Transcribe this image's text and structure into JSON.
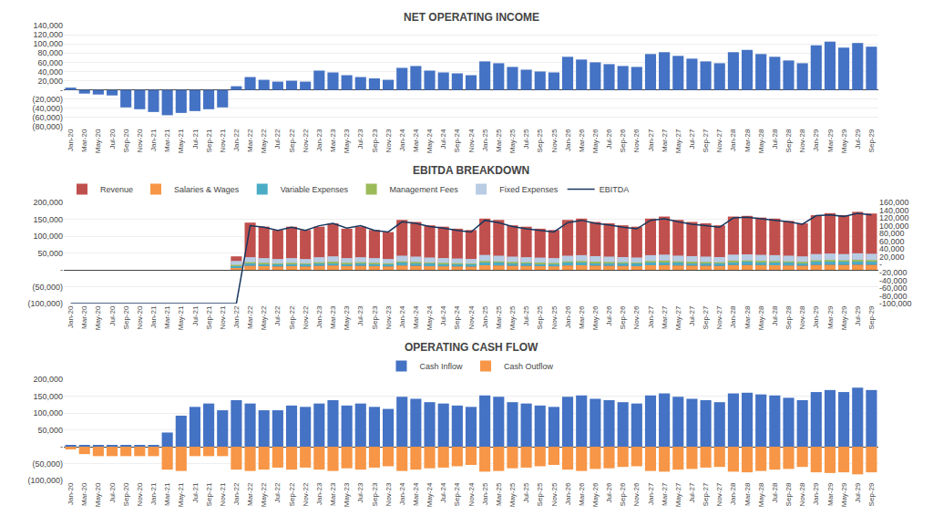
{
  "chart_data": [
    {
      "type": "bar",
      "title": "NET OPERATING INCOME",
      "categories": [
        "Jan-20",
        "Mar-20",
        "May-20",
        "Jul-20",
        "Sep-20",
        "Nov-20",
        "Jan-21",
        "Mar-21",
        "May-21",
        "Jul-21",
        "Sep-21",
        "Nov-21",
        "Jan-22",
        "Mar-22",
        "May-22",
        "Jul-22",
        "Sep-22",
        "Nov-22",
        "Jan-23",
        "Mar-23",
        "May-23",
        "Jul-23",
        "Sep-23",
        "Nov-23",
        "Jan-24",
        "Mar-24",
        "May-24",
        "Jul-24",
        "Sep-24",
        "Nov-24",
        "Jan-25",
        "Mar-25",
        "May-25",
        "Jul-25",
        "Sep-25",
        "Nov-25",
        "Jan-26",
        "Mar-26",
        "May-26",
        "Jul-26",
        "Sep-26",
        "Nov-26",
        "Jan-27",
        "Mar-27",
        "May-27",
        "Jul-27",
        "Sep-27",
        "Nov-27",
        "Jan-28",
        "Mar-28",
        "May-28",
        "Jul-28",
        "Sep-28",
        "Nov-28",
        "Jan-29",
        "Mar-29",
        "May-29",
        "Jul-29",
        "Sep-29"
      ],
      "values": [
        5000,
        -8000,
        -10000,
        -12000,
        -38000,
        -42000,
        -48000,
        -55000,
        -50000,
        -46000,
        -42000,
        -38000,
        8000,
        28000,
        22000,
        18000,
        20000,
        18000,
        42000,
        38000,
        32000,
        28000,
        25000,
        22000,
        48000,
        52000,
        42000,
        38000,
        36000,
        32000,
        62000,
        58000,
        50000,
        44000,
        40000,
        38000,
        72000,
        66000,
        60000,
        56000,
        52000,
        50000,
        78000,
        82000,
        74000,
        68000,
        62000,
        58000,
        82000,
        87000,
        78000,
        72000,
        64000,
        58000,
        97000,
        105000,
        92000,
        102000,
        94000
      ],
      "color": "#4472C4",
      "ylim": [
        -80000,
        140000
      ],
      "yticks": [
        {
          "value": -80000,
          "label": "(80,000)"
        },
        {
          "value": -60000,
          "label": "(60,000)"
        },
        {
          "value": -40000,
          "label": "(40,000)"
        },
        {
          "value": -20000,
          "label": "(20,000)"
        },
        {
          "value": 0,
          "label": "-"
        },
        {
          "value": 20000,
          "label": "20,000"
        },
        {
          "value": 40000,
          "label": "40,000"
        },
        {
          "value": 60000,
          "label": "60,000"
        },
        {
          "value": 80000,
          "label": "80,000"
        },
        {
          "value": 100000,
          "label": "100,000"
        },
        {
          "value": 120000,
          "label": "120,000"
        },
        {
          "value": 140000,
          "label": "140,000"
        }
      ],
      "grid": true
    },
    {
      "type": "bar",
      "title": "EBITDA BREAKDOWN",
      "categories": [
        "Jan-20",
        "Mar-20",
        "May-20",
        "Jul-20",
        "Sep-20",
        "Nov-20",
        "Jan-21",
        "Mar-21",
        "May-21",
        "Jul-21",
        "Sep-21",
        "Nov-21",
        "Jan-22",
        "Mar-22",
        "May-22",
        "Jul-22",
        "Sep-22",
        "Nov-22",
        "Jan-23",
        "Mar-23",
        "May-23",
        "Jul-23",
        "Sep-23",
        "Nov-23",
        "Jan-24",
        "Mar-24",
        "May-24",
        "Jul-24",
        "Sep-24",
        "Nov-24",
        "Jan-25",
        "Mar-25",
        "May-25",
        "Jul-25",
        "Sep-25",
        "Nov-25",
        "Jan-26",
        "Mar-26",
        "May-26",
        "Jul-26",
        "Sep-26",
        "Nov-26",
        "Jan-27",
        "Mar-27",
        "May-27",
        "Jul-27",
        "Sep-27",
        "Nov-27",
        "Jan-28",
        "Mar-28",
        "May-28",
        "Jul-28",
        "Sep-28",
        "Nov-28",
        "Jan-29",
        "Mar-29",
        "May-29",
        "Jul-29",
        "Sep-29"
      ],
      "series": [
        {
          "name": "Revenue",
          "color": "#C0504D",
          "values": [
            0,
            0,
            0,
            0,
            0,
            0,
            0,
            0,
            0,
            0,
            0,
            0,
            40000,
            140000,
            128000,
            118000,
            128000,
            118000,
            128000,
            138000,
            122000,
            128000,
            118000,
            112000,
            148000,
            142000,
            132000,
            128000,
            122000,
            118000,
            152000,
            148000,
            132000,
            128000,
            122000,
            118000,
            148000,
            152000,
            142000,
            138000,
            132000,
            128000,
            152000,
            158000,
            148000,
            142000,
            138000,
            132000,
            158000,
            160000,
            155000,
            152000,
            145000,
            138000,
            162000,
            168000,
            162000,
            172000,
            167000
          ]
        },
        {
          "name": "Salaries & Wages",
          "color": "#F79646",
          "stacked": true,
          "values": [
            0,
            0,
            0,
            0,
            0,
            0,
            0,
            0,
            0,
            0,
            0,
            0,
            8000,
            12000,
            11000,
            10000,
            11000,
            10000,
            12000,
            13000,
            11000,
            12000,
            11000,
            10000,
            13000,
            12000,
            11000,
            10500,
            10000,
            9500,
            13500,
            13000,
            12000,
            11500,
            11000,
            10500,
            13000,
            13500,
            12500,
            12000,
            11500,
            11000,
            13500,
            14000,
            13000,
            12500,
            12000,
            11500,
            14000,
            14200,
            13800,
            13500,
            13000,
            12200,
            14500,
            15000,
            14500,
            15200,
            14800
          ]
        },
        {
          "name": "Variable Expenses",
          "color": "#4BACC6",
          "stacked": true,
          "values": [
            0,
            0,
            0,
            0,
            0,
            0,
            0,
            0,
            0,
            0,
            0,
            0,
            5000,
            8000,
            7500,
            7000,
            7500,
            7000,
            8000,
            8500,
            7500,
            8000,
            7500,
            7000,
            9000,
            8500,
            8000,
            7500,
            7200,
            7000,
            9500,
            9000,
            8500,
            8000,
            7800,
            7500,
            9000,
            9500,
            8800,
            8500,
            8200,
            8000,
            9500,
            10000,
            9200,
            8800,
            8500,
            8200,
            10000,
            10200,
            9800,
            9500,
            9200,
            8800,
            10500,
            11000,
            10500,
            11200,
            10800
          ]
        },
        {
          "name": "Management Fees",
          "color": "#9BBB59",
          "stacked": true,
          "values": [
            0,
            0,
            0,
            0,
            0,
            0,
            0,
            0,
            0,
            0,
            0,
            0,
            1500,
            2500,
            2300,
            2100,
            2300,
            2100,
            2500,
            2700,
            2400,
            2500,
            2300,
            2200,
            3000,
            2800,
            2600,
            2500,
            2400,
            2300,
            3200,
            3000,
            2800,
            2600,
            2500,
            2400,
            3000,
            3100,
            2900,
            2800,
            2700,
            2600,
            3100,
            3200,
            3000,
            2900,
            2800,
            2700,
            3200,
            3300,
            3100,
            3000,
            2900,
            2800,
            3300,
            3400,
            3300,
            3500,
            3400
          ]
        },
        {
          "name": "Fixed Expenses",
          "color": "#B8CCE4",
          "stacked": true,
          "values": [
            0,
            0,
            0,
            0,
            0,
            0,
            0,
            0,
            0,
            0,
            0,
            0,
            12000,
            15000,
            14000,
            13000,
            14000,
            13000,
            15000,
            16000,
            14000,
            15000,
            14000,
            13000,
            17000,
            16000,
            15000,
            14500,
            14000,
            13500,
            18000,
            17000,
            16000,
            15500,
            15000,
            14500,
            17000,
            17500,
            16500,
            16000,
            15500,
            15000,
            17500,
            18000,
            17000,
            16500,
            16000,
            15500,
            18000,
            18200,
            17800,
            17500,
            17000,
            16200,
            18500,
            19000,
            18500,
            19200,
            18800
          ]
        },
        {
          "name": "EBITDA",
          "type": "line",
          "axis": "y2",
          "color": "#17375E",
          "values": [
            -100000,
            -100000,
            -100000,
            -100000,
            -100000,
            -100000,
            -100000,
            -100000,
            -100000,
            -100000,
            -100000,
            -100000,
            -100000,
            100000,
            96000,
            88000,
            96000,
            88000,
            100000,
            106000,
            94000,
            100000,
            88000,
            84000,
            110000,
            106000,
            98000,
            94000,
            88000,
            84000,
            114000,
            108000,
            98000,
            92000,
            88000,
            84000,
            108000,
            114000,
            106000,
            102000,
            96000,
            92000,
            114000,
            118000,
            110000,
            104000,
            100000,
            96000,
            120000,
            122000,
            118000,
            114000,
            110000,
            104000,
            126000,
            128000,
            124000,
            132000,
            128000
          ]
        }
      ],
      "ylim": [
        -100000,
        200000
      ],
      "yticks": [
        {
          "value": -100000,
          "label": "(100,000)"
        },
        {
          "value": -50000,
          "label": "(50,000)"
        },
        {
          "value": 0,
          "label": "-"
        },
        {
          "value": 50000,
          "label": "50,000"
        },
        {
          "value": 100000,
          "label": "100,000"
        },
        {
          "value": 150000,
          "label": "150,000"
        },
        {
          "value": 200000,
          "label": "200,000"
        }
      ],
      "y2lim": [
        -100000,
        160000
      ],
      "y2ticks": [
        {
          "value": -100000,
          "label": "-100,000"
        },
        {
          "value": -80000,
          "label": "-80,000"
        },
        {
          "value": -60000,
          "label": "-60,000"
        },
        {
          "value": -40000,
          "label": "-40,000"
        },
        {
          "value": -20000,
          "label": "-20,000"
        },
        {
          "value": 0,
          "label": "-"
        },
        {
          "value": 20000,
          "label": "20,000"
        },
        {
          "value": 40000,
          "label": "40,000"
        },
        {
          "value": 60000,
          "label": "60,000"
        },
        {
          "value": 80000,
          "label": "80,000"
        },
        {
          "value": 100000,
          "label": "100,000"
        },
        {
          "value": 120000,
          "label": "120,000"
        },
        {
          "value": 140000,
          "label": "140,000"
        },
        {
          "value": 160000,
          "label": "160,000"
        }
      ],
      "grid": true,
      "legend": "upper left"
    },
    {
      "type": "bar",
      "title": "OPERATING CASH FLOW",
      "categories": [
        "Jan-20",
        "Mar-20",
        "May-20",
        "Jul-20",
        "Sep-20",
        "Nov-20",
        "Jan-21",
        "Mar-21",
        "May-21",
        "Jul-21",
        "Sep-21",
        "Nov-21",
        "Jan-22",
        "Mar-22",
        "May-22",
        "Jul-22",
        "Sep-22",
        "Nov-22",
        "Jan-23",
        "Mar-23",
        "May-23",
        "Jul-23",
        "Sep-23",
        "Nov-23",
        "Jan-24",
        "Mar-24",
        "May-24",
        "Jul-24",
        "Sep-24",
        "Nov-24",
        "Jan-25",
        "Mar-25",
        "May-25",
        "Jul-25",
        "Sep-25",
        "Nov-25",
        "Jan-26",
        "Mar-26",
        "May-26",
        "Jul-26",
        "Sep-26",
        "Nov-26",
        "Jan-27",
        "Mar-27",
        "May-27",
        "Jul-27",
        "Sep-27",
        "Nov-27",
        "Jan-28",
        "Mar-28",
        "May-28",
        "Jul-28",
        "Sep-28",
        "Nov-28",
        "Jan-29",
        "Mar-29",
        "May-29",
        "Jul-29",
        "Sep-29"
      ],
      "series": [
        {
          "name": "Cash Inflow",
          "color": "#4472C4",
          "values": [
            5000,
            3000,
            3000,
            3000,
            3000,
            3000,
            3000,
            42000,
            92000,
            118000,
            128000,
            108000,
            138000,
            128000,
            108000,
            108000,
            122000,
            118000,
            128000,
            138000,
            122000,
            128000,
            118000,
            112000,
            148000,
            142000,
            132000,
            128000,
            122000,
            118000,
            152000,
            148000,
            132000,
            128000,
            122000,
            118000,
            148000,
            152000,
            142000,
            138000,
            132000,
            128000,
            152000,
            158000,
            148000,
            142000,
            138000,
            132000,
            158000,
            160000,
            155000,
            152000,
            145000,
            138000,
            162000,
            168000,
            162000,
            175000,
            168000
          ]
        },
        {
          "name": "Cash Outflow",
          "color": "#F79646",
          "values": [
            -8000,
            -22000,
            -28000,
            -28000,
            -28000,
            -28000,
            -28000,
            -68000,
            -72000,
            -28000,
            -28000,
            -28000,
            -68000,
            -72000,
            -68000,
            -62000,
            -68000,
            -62000,
            -68000,
            -72000,
            -64000,
            -68000,
            -62000,
            -58000,
            -72000,
            -68000,
            -64000,
            -62000,
            -58000,
            -54000,
            -74000,
            -72000,
            -64000,
            -62000,
            -58000,
            -54000,
            -68000,
            -72000,
            -66000,
            -64000,
            -60000,
            -58000,
            -72000,
            -74000,
            -68000,
            -66000,
            -62000,
            -60000,
            -74000,
            -76000,
            -72000,
            -68000,
            -66000,
            -60000,
            -76000,
            -78000,
            -76000,
            -82000,
            -76000
          ]
        }
      ],
      "ylim": [
        -100000,
        200000
      ],
      "yticks": [
        {
          "value": -100000,
          "label": "(100,000)"
        },
        {
          "value": -50000,
          "label": "(50,000)"
        },
        {
          "value": 0,
          "label": "-"
        },
        {
          "value": 50000,
          "label": "50,000"
        },
        {
          "value": 100000,
          "label": "100,000"
        },
        {
          "value": 150000,
          "label": "150,000"
        },
        {
          "value": 200000,
          "label": "200,000"
        }
      ],
      "grid": true,
      "legend": "upper center"
    }
  ]
}
